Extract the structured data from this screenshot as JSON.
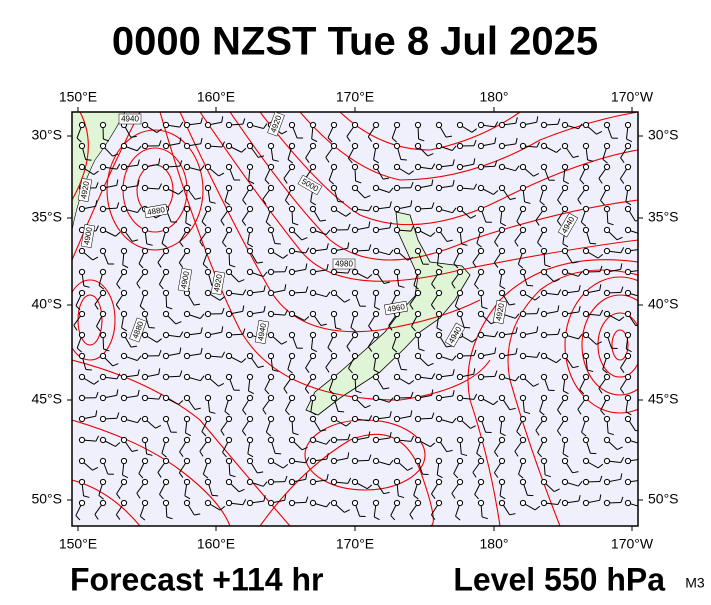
{
  "title": "0000 NZST Tue 8 Jul 2025",
  "lon_labels": [
    "150°E",
    "160°E",
    "170°E",
    "180°",
    "170°W"
  ],
  "lat_labels": [
    "30°S",
    "35°S",
    "40°S",
    "45°S",
    "50°S"
  ],
  "contour_labels": [
    "4940",
    "4920",
    "5000",
    "4980",
    "4960",
    "4940",
    "4920",
    "4900",
    "4920",
    "4880",
    "4900",
    "4920",
    "4940",
    "4880",
    "4940"
  ],
  "footer": {
    "forecast": "Forecast +114 hr",
    "level": "Level 550 hPa",
    "model": "M3"
  }
}
